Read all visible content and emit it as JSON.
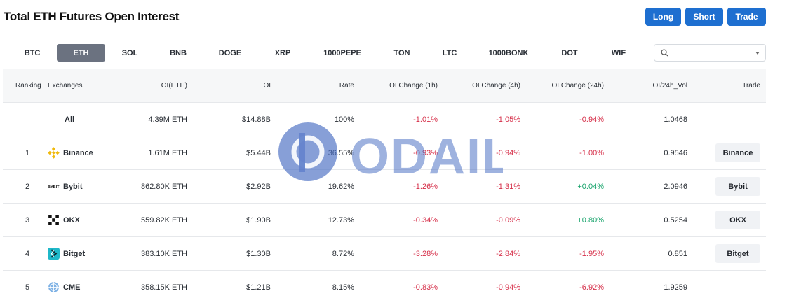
{
  "page": {
    "title": "Total ETH Futures Open Interest"
  },
  "actions": {
    "long": "Long",
    "short": "Short",
    "trade": "Trade",
    "color": "#1e6fd0"
  },
  "tabs": [
    "BTC",
    "ETH",
    "SOL",
    "BNB",
    "DOGE",
    "XRP",
    "1000PEPE",
    "TON",
    "LTC",
    "1000BONK",
    "DOT",
    "WIF"
  ],
  "active_tab": "ETH",
  "search": {
    "icon": "search-icon",
    "value": ""
  },
  "table": {
    "headers": {
      "ranking": "Ranking",
      "exchanges": "Exchanges",
      "oi_eth": "OI(ETH)",
      "oi": "OI",
      "rate": "Rate",
      "ch1h": "OI Change (1h)",
      "ch4h": "OI Change (4h)",
      "ch24h": "OI Change (24h)",
      "vol": "OI/24h_Vol",
      "trade": "Trade"
    },
    "all": {
      "label": "All",
      "oi_eth": "4.39M ETH",
      "oi": "$14.88B",
      "rate": "100%",
      "ch1h": "-1.01%",
      "ch4h": "-1.05%",
      "ch24h": "-0.94%",
      "vol": "1.0468"
    },
    "rows": [
      {
        "rank": "1",
        "name": "Binance",
        "icon": "binance-icon",
        "oi_eth": "1.61M ETH",
        "oi": "$5.44B",
        "rate": "36.55%",
        "ch1h": "-0.93%",
        "ch4h": "-0.94%",
        "ch24h": "-1.00%",
        "vol": "0.9546",
        "trade": "Binance"
      },
      {
        "rank": "2",
        "name": "Bybit",
        "icon": "bybit-icon",
        "oi_eth": "862.80K ETH",
        "oi": "$2.92B",
        "rate": "19.62%",
        "ch1h": "-1.26%",
        "ch4h": "-1.31%",
        "ch24h": "+0.04%",
        "vol": "2.0946",
        "trade": "Bybit"
      },
      {
        "rank": "3",
        "name": "OKX",
        "icon": "okx-icon",
        "oi_eth": "559.82K ETH",
        "oi": "$1.90B",
        "rate": "12.73%",
        "ch1h": "-0.34%",
        "ch4h": "-0.09%",
        "ch24h": "+0.80%",
        "vol": "0.5254",
        "trade": "OKX"
      },
      {
        "rank": "4",
        "name": "Bitget",
        "icon": "bitget-icon",
        "oi_eth": "383.10K ETH",
        "oi": "$1.30B",
        "rate": "8.72%",
        "ch1h": "-3.28%",
        "ch4h": "-2.84%",
        "ch24h": "-1.95%",
        "vol": "0.851",
        "trade": "Bitget"
      },
      {
        "rank": "5",
        "name": "CME",
        "icon": "cme-icon",
        "oi_eth": "358.15K ETH",
        "oi": "$1.21B",
        "rate": "8.15%",
        "ch1h": "-0.83%",
        "ch4h": "-0.94%",
        "ch24h": "-6.92%",
        "vol": "1.9259",
        "trade": ""
      }
    ]
  },
  "watermark": {
    "text": "ODAILY"
  },
  "colors": {
    "negative": "#d6304a",
    "positive": "#17a36b",
    "active_tab": "#6b7280"
  }
}
